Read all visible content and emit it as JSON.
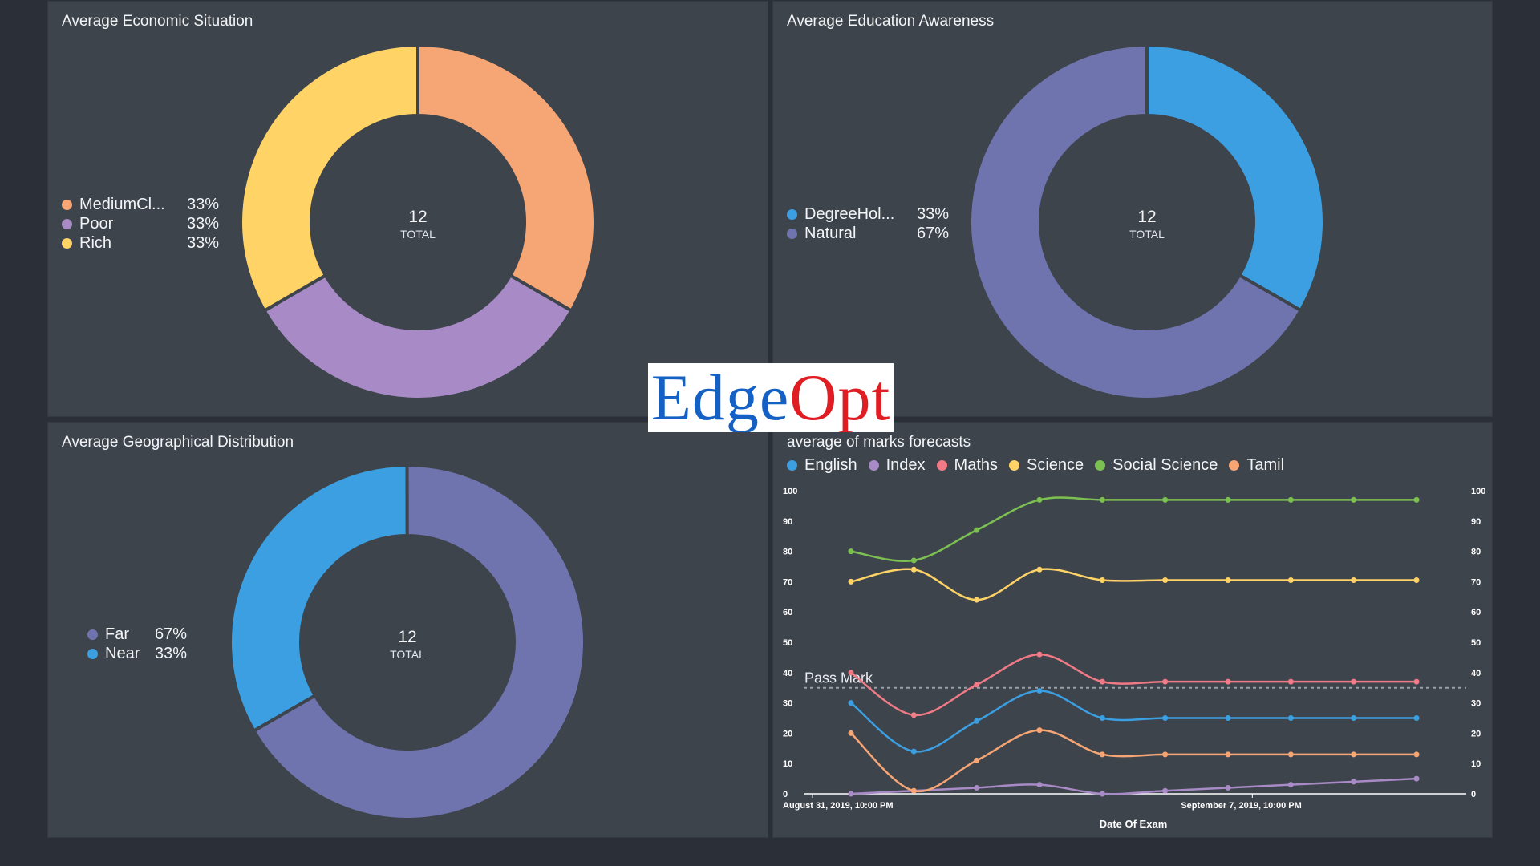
{
  "colors": {
    "background": "#2b3038",
    "panel": "#3e444c",
    "orange": "#f6a574",
    "purple": "#a88bc6",
    "yellow": "#ffd366",
    "blue": "#3b9fe2",
    "indigo": "#6f74ae",
    "green": "#7dc052",
    "pink": "#f07a86",
    "logo_blue": "#1460c4",
    "logo_red": "#e01d22"
  },
  "logo": {
    "part1": "Edge",
    "part2": "Opt"
  },
  "panels": {
    "economic": {
      "title": "Average Economic Situation",
      "center_value": "12",
      "center_label": "TOTAL",
      "legend": [
        {
          "label": "MediumCl...",
          "pct": "33%",
          "color": "#f6a574"
        },
        {
          "label": "Poor",
          "pct": "33%",
          "color": "#a88bc6"
        },
        {
          "label": "Rich",
          "pct": "33%",
          "color": "#ffd366"
        }
      ]
    },
    "education": {
      "title": "Average Education Awareness",
      "center_value": "12",
      "center_label": "TOTAL",
      "legend": [
        {
          "label": "DegreeHol...",
          "pct": "33%",
          "color": "#3b9fe2"
        },
        {
          "label": "Natural",
          "pct": "67%",
          "color": "#6f74ae"
        }
      ]
    },
    "geographical": {
      "title": "Average Geographical Distribution",
      "center_value": "12",
      "center_label": "TOTAL",
      "legend": [
        {
          "label": "Far",
          "pct": "67%",
          "color": "#6f74ae"
        },
        {
          "label": "Near",
          "pct": "33%",
          "color": "#3b9fe2"
        }
      ]
    },
    "marks": {
      "title": "average of marks forecasts"
    }
  },
  "chart_data": [
    {
      "type": "pie",
      "variant": "donut",
      "title": "Average Economic Situation",
      "labels": [
        "MediumCl...",
        "Poor",
        "Rich"
      ],
      "values": [
        33.3,
        33.3,
        33.3
      ],
      "colors": [
        "#f6a574",
        "#a88bc6",
        "#ffd366"
      ],
      "total": 12
    },
    {
      "type": "pie",
      "variant": "donut",
      "title": "Average Education Awareness",
      "labels": [
        "DegreeHol...",
        "Natural"
      ],
      "values": [
        33.3,
        66.7
      ],
      "colors": [
        "#3b9fe2",
        "#6f74ae"
      ],
      "total": 12
    },
    {
      "type": "pie",
      "variant": "donut",
      "title": "Average Geographical Distribution",
      "labels": [
        "Near",
        "Far"
      ],
      "values": [
        33.3,
        66.7
      ],
      "colors": [
        "#3b9fe2",
        "#6f74ae"
      ],
      "total": 12
    },
    {
      "type": "line",
      "title": "average of marks forecasts",
      "xlabel": "Date Of Exam",
      "ylabel": "",
      "ylim": [
        0,
        100
      ],
      "yticks": [
        0,
        10,
        20,
        30,
        40,
        50,
        60,
        70,
        80,
        90,
        100
      ],
      "x_tick_labels": [
        {
          "label": "August 31, 2019, 10:00 PM",
          "index": 0
        },
        {
          "label": "September 7, 2019, 10:00 PM",
          "index": 7
        }
      ],
      "x": [
        0,
        1,
        2,
        3,
        4,
        5,
        6,
        7,
        8,
        9
      ],
      "threshold": {
        "label": "Pass Mark",
        "value": 35
      },
      "legend_position": "top",
      "series": [
        {
          "name": "English",
          "color": "#3b9fe2",
          "values": [
            30,
            14,
            24,
            34,
            25,
            25,
            25,
            25,
            25,
            25
          ]
        },
        {
          "name": "Index",
          "color": "#a88bc6",
          "values": [
            0,
            1,
            2,
            3,
            0,
            1,
            2,
            3,
            4,
            5
          ]
        },
        {
          "name": "Maths",
          "color": "#f07a86",
          "values": [
            40,
            26,
            36,
            46,
            37,
            37,
            37,
            37,
            37,
            37
          ]
        },
        {
          "name": "Science",
          "color": "#ffd366",
          "values": [
            70,
            74,
            64,
            74,
            70.5,
            70.5,
            70.5,
            70.5,
            70.5,
            70.5
          ]
        },
        {
          "name": "Social Science",
          "color": "#7dc052",
          "values": [
            80,
            77,
            87,
            97,
            97,
            97,
            97,
            97,
            97,
            97
          ]
        },
        {
          "name": "Tamil",
          "color": "#f6a574",
          "values": [
            20,
            1,
            11,
            21,
            13,
            13,
            13,
            13,
            13,
            13
          ]
        }
      ]
    }
  ]
}
